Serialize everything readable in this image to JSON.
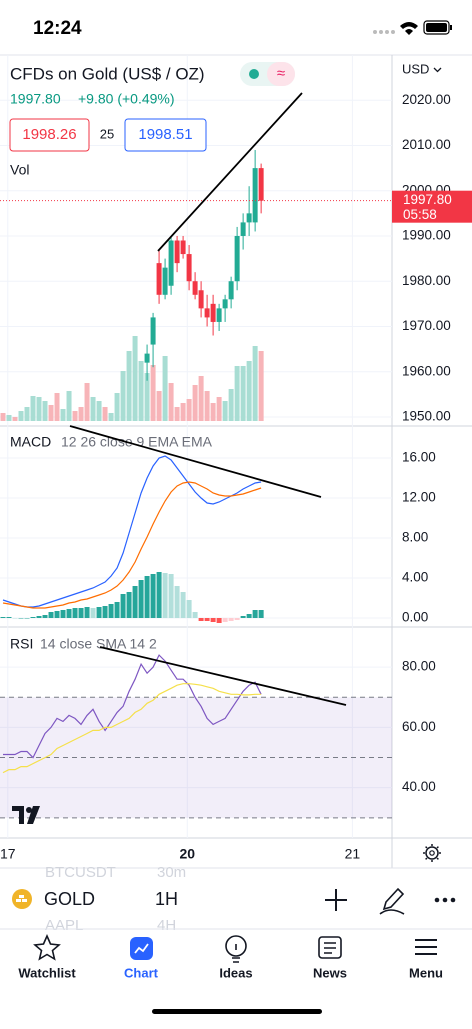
{
  "status_bar": {
    "time": "12:24"
  },
  "header": {
    "symbol": "CFDs on Gold (US$ / OZ)",
    "price": "1997.80",
    "change": "+9.80 (+0.49%)",
    "bid": "1998.26",
    "spread": "25",
    "ask": "1998.51",
    "currency": "USD"
  },
  "chart_data": [
    {
      "type": "candlestick",
      "x": [
        24,
        25,
        26,
        27,
        28,
        29,
        30,
        31,
        32,
        33,
        34,
        35,
        36,
        37,
        38,
        39,
        40,
        41,
        42,
        43
      ],
      "open": [
        1962,
        1966,
        1984,
        1977,
        1979,
        1989,
        1989,
        1986,
        1980,
        1978,
        1974,
        1975,
        1971,
        1974,
        1976,
        1980,
        1990,
        1993,
        1993,
        2005
      ],
      "high": [
        1966,
        1973,
        1987,
        1985,
        1990,
        1990,
        1990,
        1988,
        1982,
        1980,
        1977,
        1977,
        1975,
        1977,
        1981,
        1992,
        1995,
        2001,
        2009,
        2006
      ],
      "low": [
        1958,
        1961,
        1975,
        1976,
        1977,
        1982,
        1985,
        1978,
        1976,
        1972,
        1970,
        1968,
        1969,
        1971,
        1974,
        1978,
        1987,
        1990,
        1991,
        1995
      ],
      "close": [
        1964,
        1972,
        1977,
        1983,
        1989,
        1984,
        1986,
        1980,
        1977,
        1974,
        1972,
        1971,
        1974,
        1976,
        1980,
        1990,
        1993,
        1995,
        2005,
        1997.8
      ],
      "up_color": "#22ab94",
      "down_color": "#f23645",
      "volume": {
        "name": "Vol",
        "x": [
          0,
          1,
          2,
          3,
          4,
          5,
          6,
          7,
          8,
          9,
          10,
          11,
          12,
          13,
          14,
          15,
          16,
          17,
          18,
          19,
          20,
          21,
          22,
          23,
          24,
          25,
          26,
          27,
          28,
          29,
          30,
          31,
          32,
          33,
          34,
          35,
          36,
          37,
          38,
          39,
          40,
          41,
          42,
          43
        ],
        "values": [
          8,
          6,
          4,
          10,
          14,
          25,
          24,
          20,
          16,
          28,
          12,
          30,
          10,
          14,
          38,
          24,
          20,
          14,
          8,
          28,
          50,
          70,
          85,
          60,
          48,
          56,
          30,
          65,
          38,
          14,
          18,
          22,
          36,
          45,
          30,
          18,
          24,
          20,
          32,
          55,
          55,
          60,
          75,
          70
        ],
        "colors": [
          "#f7b4b8",
          "#a8ddd3",
          "#f7b4b8",
          "#a8ddd3",
          "#a8ddd3",
          "#a8ddd3",
          "#a8ddd3",
          "#a8ddd3",
          "#f7b4b8",
          "#f7b4b8",
          "#a8ddd3",
          "#a8ddd3",
          "#f7b4b8",
          "#f7b4b8",
          "#f7b4b8",
          "#a8ddd3",
          "#a8ddd3",
          "#f7b4b8",
          "#a8ddd3",
          "#a8ddd3",
          "#a8ddd3",
          "#a8ddd3",
          "#a8ddd3",
          "#a8ddd3",
          "#a8ddd3",
          "#f7b4b8",
          "#f7b4b8",
          "#a8ddd3",
          "#f7b4b8",
          "#f7b4b8",
          "#f7b4b8",
          "#f7b4b8",
          "#f7b4b8",
          "#f7b4b8",
          "#f7b4b8",
          "#f7b4b8",
          "#f7b4b8",
          "#a8ddd3",
          "#a8ddd3",
          "#a8ddd3",
          "#a8ddd3",
          "#a8ddd3",
          "#a8ddd3",
          "#f7b4b8"
        ]
      },
      "price_tag": "1997.80",
      "countdown": "05:58",
      "ylim": [
        1948,
        2030
      ],
      "yticks": [
        {
          "value": 1950,
          "label": "1950.00"
        },
        {
          "value": 1960,
          "label": "1960.00"
        },
        {
          "value": 1970,
          "label": "1970.00"
        },
        {
          "value": 1980,
          "label": "1980.00"
        },
        {
          "value": 1990,
          "label": "1990.00"
        },
        {
          "value": 2000,
          "label": "2000.00"
        },
        {
          "value": 2010,
          "label": "2010.00"
        },
        {
          "value": 2020,
          "label": "2020.00"
        }
      ],
      "xlim": [
        -0.5,
        64.8
      ],
      "xticks": [
        {
          "value": 0.8,
          "label": "17"
        },
        {
          "value": 30.7,
          "label": "20"
        },
        {
          "value": 58.2,
          "label": "21"
        }
      ]
    },
    {
      "type": "macd",
      "title": "MACD",
      "params": "12 26 close 9 EMA EMA",
      "x": [
        0,
        1,
        2,
        3,
        4,
        5,
        6,
        7,
        8,
        9,
        10,
        11,
        12,
        13,
        14,
        15,
        16,
        17,
        18,
        19,
        20,
        21,
        22,
        23,
        24,
        25,
        26,
        27,
        28,
        29,
        30,
        31,
        32,
        33,
        34,
        35,
        36,
        37,
        38,
        39,
        40,
        41,
        42,
        43
      ],
      "series": [
        {
          "color": "#2962ff",
          "values": [
            1.8,
            1.6,
            1.4,
            1.2,
            1.1,
            1.1,
            1.2,
            1.4,
            1.6,
            1.8,
            2.0,
            2.2,
            2.4,
            2.6,
            2.8,
            3.0,
            3.3,
            3.6,
            4.2,
            5.0,
            6.5,
            8.5,
            10.5,
            12.5,
            14.0,
            15.2,
            16.0,
            16.2,
            15.8,
            15.0,
            14.2,
            13.4,
            12.6,
            12.0,
            11.5,
            11.4,
            11.6,
            11.9,
            12.2,
            12.5,
            12.9,
            13.2,
            13.5,
            13.6
          ]
        },
        {
          "color": "#ff6d00",
          "values": [
            1.5,
            1.4,
            1.3,
            1.2,
            1.1,
            1.0,
            1.0,
            1.0,
            1.1,
            1.2,
            1.3,
            1.5,
            1.6,
            1.8,
            1.9,
            2.1,
            2.3,
            2.5,
            2.8,
            3.2,
            3.8,
            4.6,
            5.6,
            6.9,
            8.1,
            9.4,
            10.6,
            11.7,
            12.6,
            13.2,
            13.5,
            13.6,
            13.5,
            13.2,
            12.9,
            12.5,
            12.3,
            12.2,
            12.2,
            12.3,
            12.4,
            12.6,
            12.8,
            13.0
          ]
        }
      ],
      "histogram": {
        "values": [
          0.1,
          0.1,
          0,
          0,
          0,
          0.1,
          0.2,
          0.3,
          0.6,
          0.7,
          0.8,
          0.9,
          1.0,
          1.0,
          1.1,
          1.0,
          1.1,
          1.2,
          1.4,
          1.6,
          2.4,
          2.6,
          3.2,
          3.8,
          4.2,
          4.4,
          4.6,
          4.5,
          4.4,
          3.2,
          2.6,
          1.8,
          0.6,
          -0.3,
          -0.3,
          -0.4,
          -0.5,
          -0.4,
          -0.3,
          -0.2,
          0.2,
          0.4,
          0.8,
          0.8
        ],
        "colors": [
          "#26a69a",
          "#b2dfdb",
          "#ff5252",
          "#ffcdd2"
        ]
      },
      "ylim": [
        -0.9,
        19.1
      ],
      "yticks": [
        {
          "value": 0,
          "label": "0.00"
        },
        {
          "value": 4,
          "label": "4.00"
        },
        {
          "value": 8,
          "label": "8.00"
        },
        {
          "value": 12,
          "label": "12.00"
        },
        {
          "value": 16,
          "label": "16.00"
        }
      ],
      "xlim": [
        -0.5,
        64.8
      ]
    },
    {
      "type": "rsi",
      "title": "RSI",
      "params": "14 close SMA 14 2",
      "x": [
        0,
        1,
        2,
        3,
        4,
        5,
        6,
        7,
        8,
        9,
        10,
        11,
        12,
        13,
        14,
        15,
        16,
        17,
        18,
        19,
        20,
        21,
        22,
        23,
        24,
        25,
        26,
        27,
        28,
        29,
        30,
        31,
        32,
        33,
        34,
        35,
        36,
        37,
        38,
        39,
        40,
        41,
        42,
        43
      ],
      "series": [
        {
          "color": "#7e57c2",
          "values": [
            51,
            51,
            51,
            52,
            52,
            50,
            54,
            58,
            60,
            63,
            62,
            64,
            63,
            61,
            64,
            66,
            62,
            59,
            62,
            65,
            67,
            72,
            76,
            81,
            78,
            80,
            84,
            82,
            79,
            76,
            76,
            74,
            70,
            67,
            63,
            61,
            62,
            63,
            66,
            69,
            72,
            74,
            75,
            71
          ]
        },
        {
          "color": "#f5e04a",
          "values": [
            45,
            46,
            46,
            47,
            47,
            48,
            49,
            50,
            51,
            53,
            54,
            55,
            56,
            57,
            58,
            59,
            59,
            60,
            60,
            61,
            62,
            63,
            65,
            66,
            68,
            69,
            71,
            72,
            73,
            74,
            74.5,
            74.5,
            74.3,
            74,
            73.5,
            73,
            72,
            71.5,
            71,
            71,
            70.8,
            70.8,
            71,
            71
          ]
        }
      ],
      "bands": [
        70,
        50,
        30
      ],
      "band_fill": "#7e57c2",
      "ylim": [
        23.3,
        93
      ],
      "yticks": [
        {
          "value": 40,
          "label": "40.00"
        },
        {
          "value": 60,
          "label": "60.00"
        },
        {
          "value": 80,
          "label": "80.00"
        }
      ],
      "xlim": [
        -0.5,
        64.8
      ]
    }
  ],
  "toolbar": {
    "symbol": "GOLD",
    "interval": "1H",
    "ghost_symbol_1": "BTCUSDT",
    "ghost_interval_1": "30m",
    "ghost_symbol_2": "AAPL",
    "ghost_interval_2": "4H"
  },
  "tabs": [
    "Watchlist",
    "Chart",
    "Ideas",
    "News",
    "Menu"
  ]
}
